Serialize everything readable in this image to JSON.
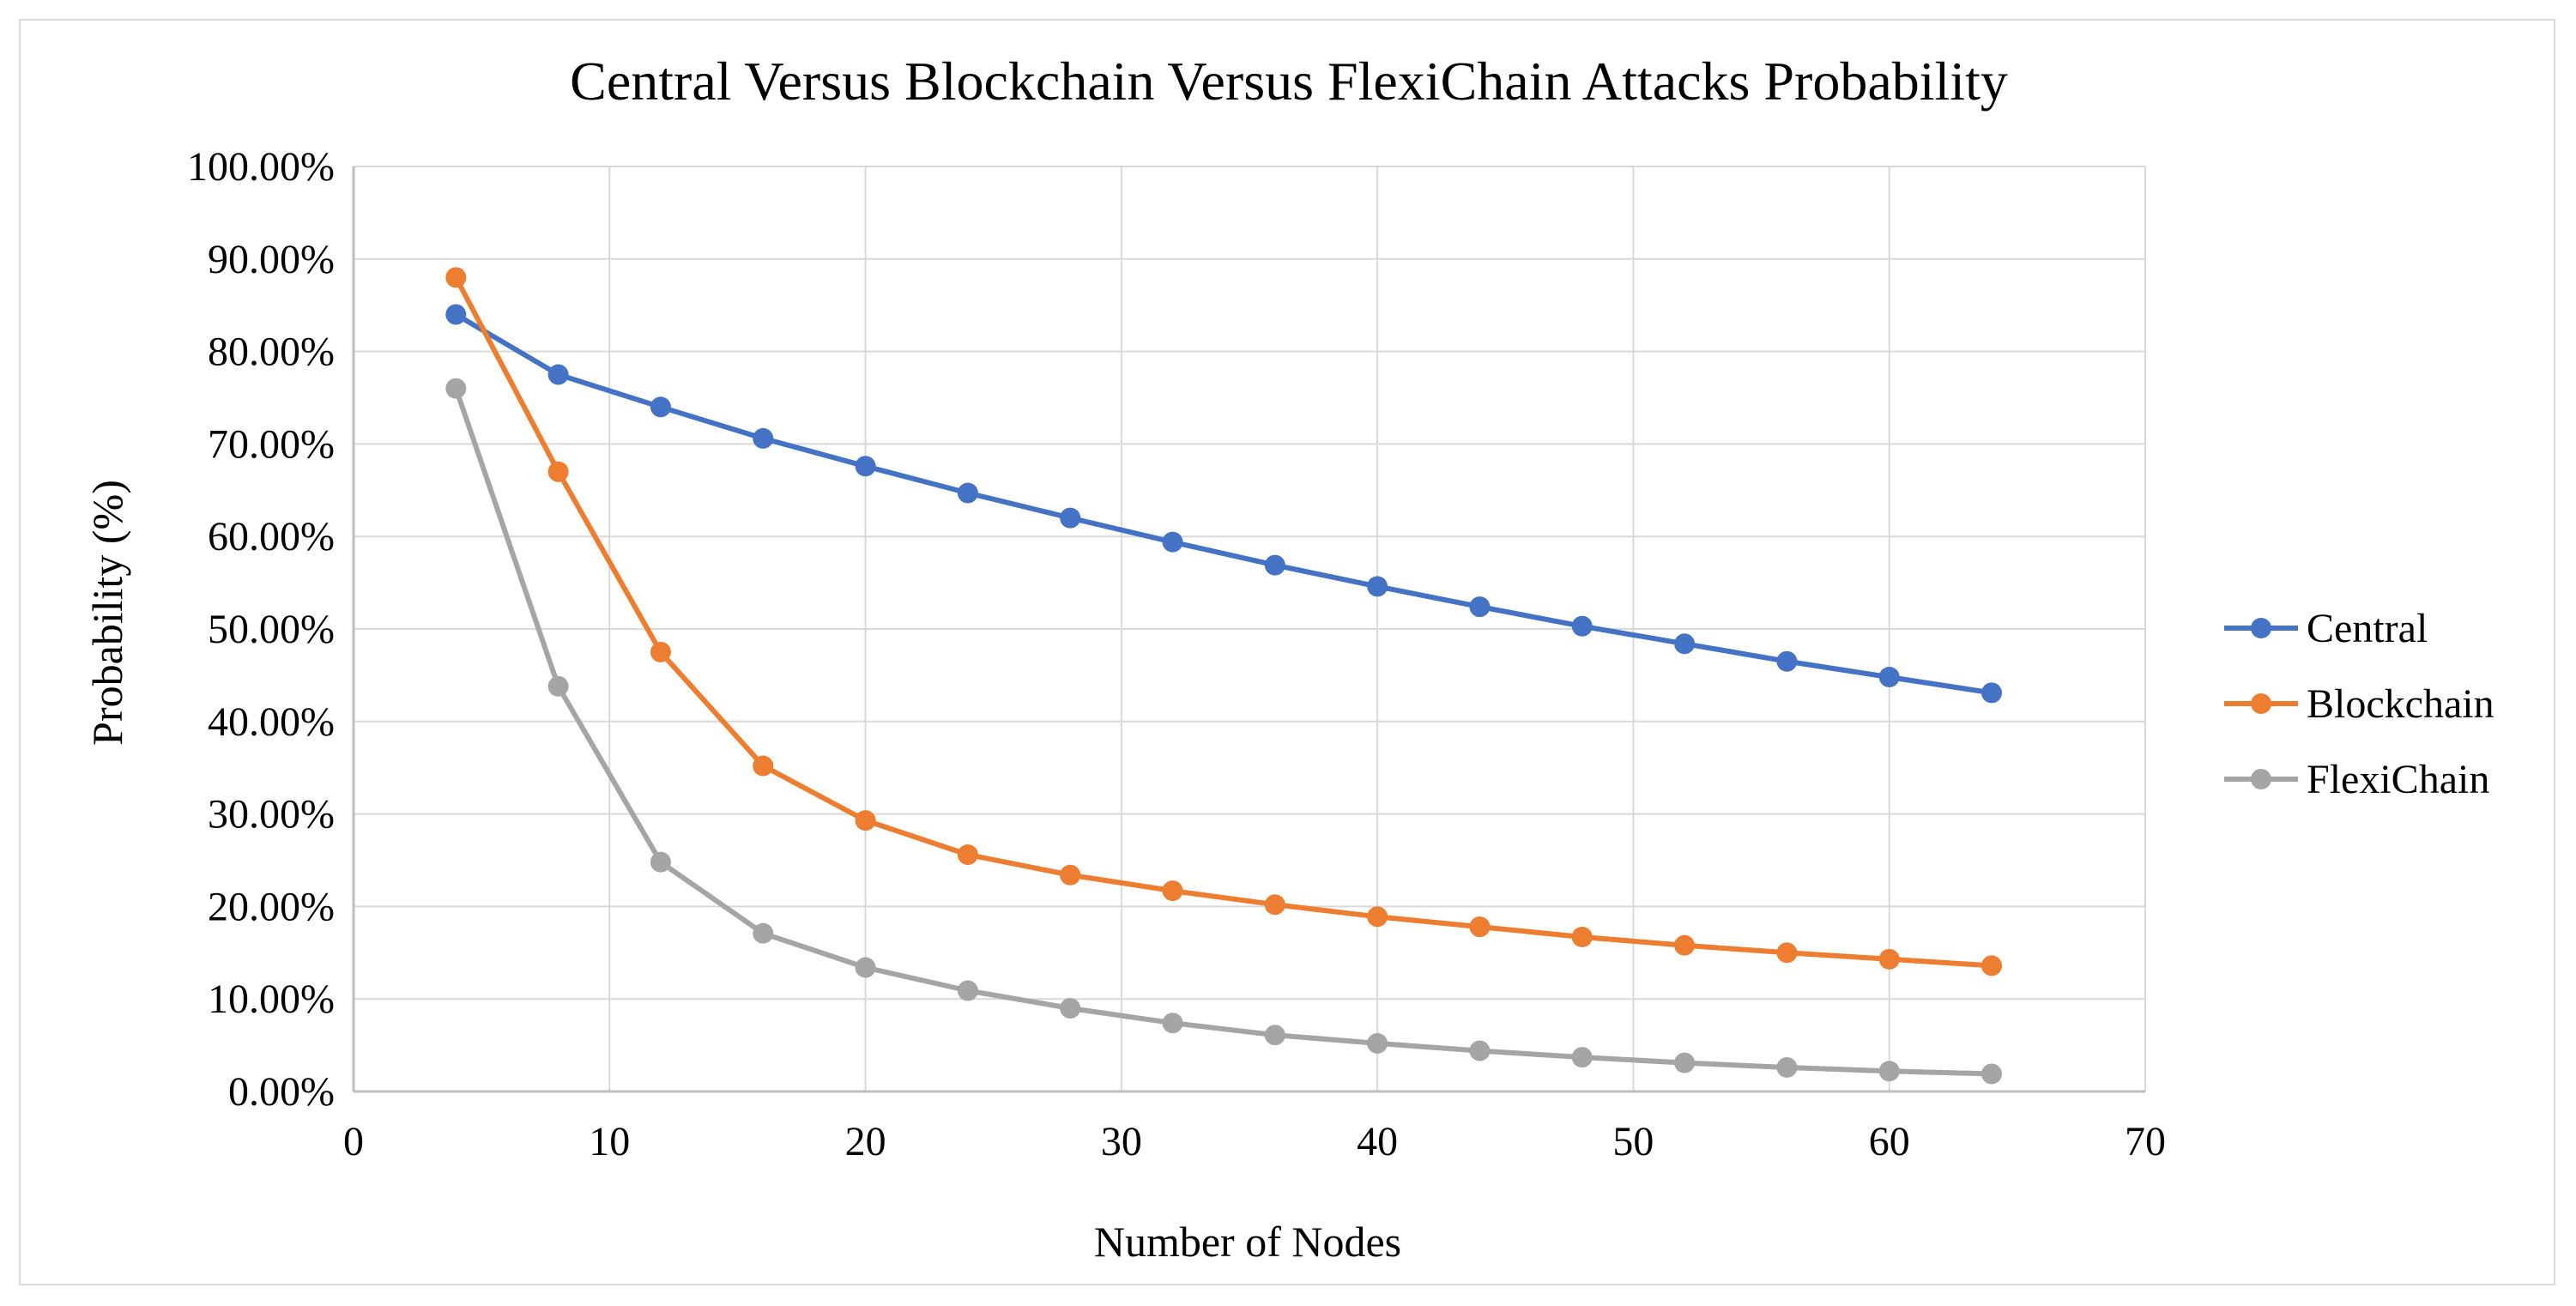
{
  "chart_data": {
    "type": "line",
    "title": "Central Versus Blockchain Versus FlexiChain Attacks Probability",
    "xlabel": "Number of Nodes",
    "ylabel": "Probability (%)",
    "xlim": [
      0,
      70
    ],
    "ylim": [
      0,
      100
    ],
    "x_ticks": [
      0,
      10,
      20,
      30,
      40,
      50,
      60,
      70
    ],
    "y_ticks": [
      0,
      10,
      20,
      30,
      40,
      50,
      60,
      70,
      80,
      90,
      100
    ],
    "x_tick_labels": [
      "0",
      "10",
      "20",
      "30",
      "40",
      "50",
      "60",
      "70"
    ],
    "y_tick_labels": [
      "0.00%",
      "10.00%",
      "20.00%",
      "30.00%",
      "40.00%",
      "50.00%",
      "60.00%",
      "70.00%",
      "80.00%",
      "90.00%",
      "100.00%"
    ],
    "grid": true,
    "legend_position": "right",
    "x": [
      4,
      8,
      12,
      16,
      20,
      24,
      28,
      32,
      36,
      40,
      44,
      48,
      52,
      56,
      60,
      64
    ],
    "series": [
      {
        "name": "Central",
        "color": "#4472C4",
        "values": [
          84.0,
          77.5,
          74.0,
          70.6,
          67.6,
          64.7,
          62.0,
          59.4,
          56.9,
          54.6,
          52.4,
          50.3,
          48.4,
          46.5,
          44.8,
          43.1
        ]
      },
      {
        "name": "Blockchain",
        "color": "#ED7D31",
        "values": [
          88.0,
          67.0,
          47.5,
          35.2,
          29.3,
          25.6,
          23.4,
          21.7,
          20.2,
          18.9,
          17.8,
          16.7,
          15.8,
          15.0,
          14.3,
          13.6
        ]
      },
      {
        "name": "FlexiChain",
        "color": "#A5A5A5",
        "values": [
          76.0,
          43.8,
          24.8,
          17.1,
          13.4,
          10.9,
          9.0,
          7.4,
          6.1,
          5.2,
          4.4,
          3.7,
          3.1,
          2.6,
          2.2,
          1.9
        ]
      }
    ]
  },
  "colors": {
    "grid": "#d9d9d9",
    "axis": "#bfbfbf"
  }
}
